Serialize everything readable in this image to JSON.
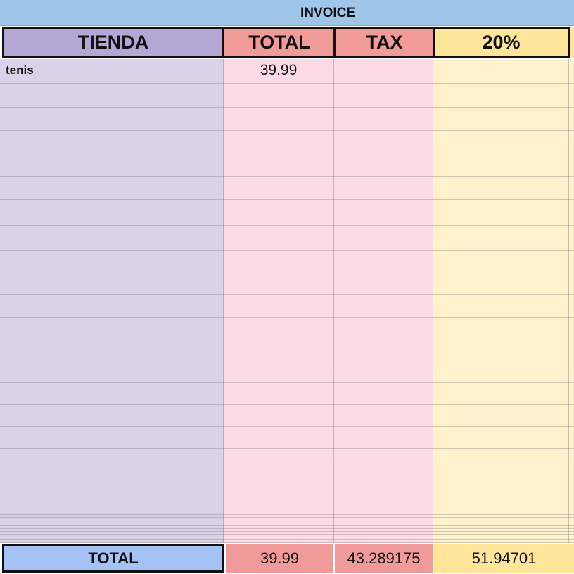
{
  "title": "INVOICE",
  "headers": [
    "TIENDA",
    "TOTAL",
    "TAX",
    "20%"
  ],
  "rows": [
    [
      "tenis",
      39.99
    ]
  ],
  "footer": [
    "TOTAL",
    39.99,
    43.289175,
    51.94701
  ]
}
